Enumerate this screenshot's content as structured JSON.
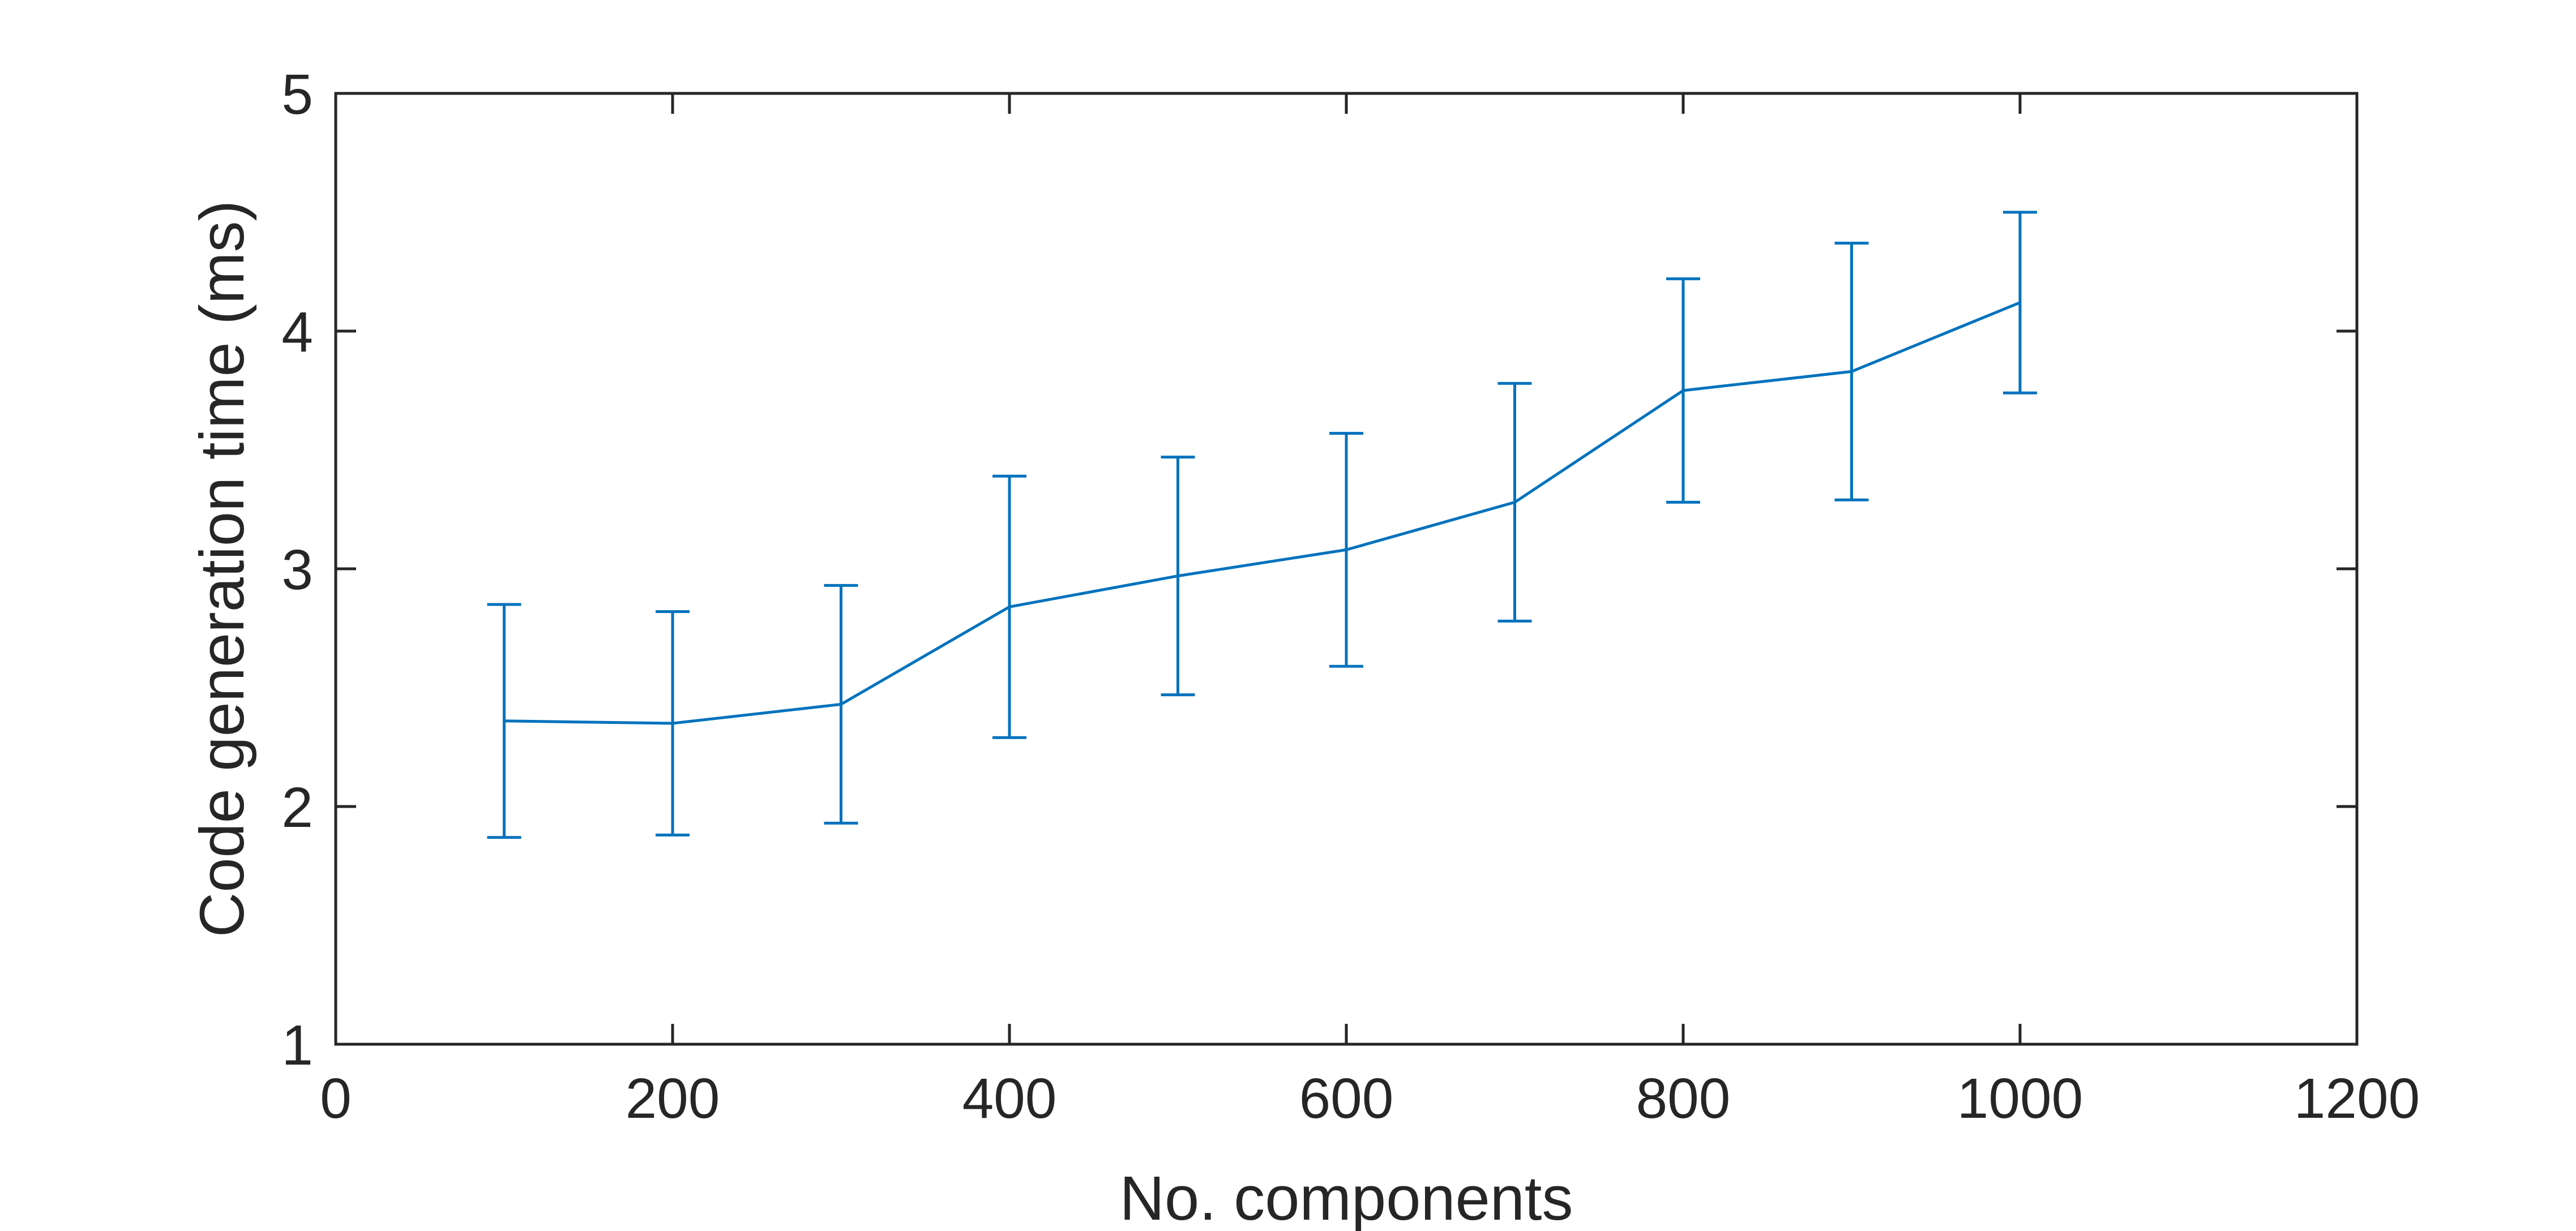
{
  "chart_data": {
    "type": "line",
    "title": "",
    "xlabel": "No. components",
    "ylabel": "Code generation time (ms)",
    "xlim": [
      0,
      1200
    ],
    "ylim": [
      1,
      5
    ],
    "xticks": [
      0,
      200,
      400,
      600,
      800,
      1000,
      1200
    ],
    "yticks": [
      1,
      2,
      3,
      4,
      5
    ],
    "xtick_labels": [
      "0",
      "200",
      "400",
      "600",
      "800",
      "1000",
      "1200"
    ],
    "ytick_labels": [
      "1",
      "2",
      "3",
      "4",
      "5"
    ],
    "grid": false,
    "error_bars": true,
    "series": [
      {
        "color": "#0072BD",
        "x": [
          100,
          200,
          300,
          400,
          500,
          600,
          700,
          800,
          900,
          1000
        ],
        "y": [
          2.36,
          2.35,
          2.43,
          2.84,
          2.97,
          3.08,
          3.28,
          3.75,
          3.83,
          4.12
        ],
        "err_lower": [
          1.87,
          1.88,
          1.93,
          2.29,
          2.47,
          2.59,
          2.78,
          3.28,
          3.29,
          3.74
        ],
        "err_upper": [
          2.85,
          2.82,
          2.93,
          3.39,
          3.47,
          3.57,
          3.78,
          4.22,
          4.37,
          4.5
        ]
      }
    ]
  }
}
